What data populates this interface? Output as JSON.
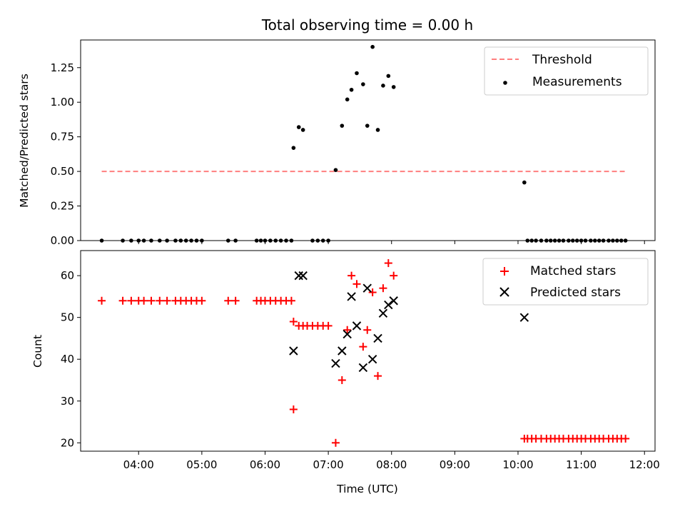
{
  "chart_data": [
    {
      "type": "scatter",
      "title": "Total observing time = 0.00 h",
      "xlabel": "",
      "ylabel": "Matched/Predicted stars",
      "ylim": [
        0,
        1.45
      ],
      "yticks": [
        "0.00",
        "0.25",
        "0.50",
        "0.75",
        "1.00",
        "1.25"
      ],
      "legend": {
        "placement": "top-right",
        "entries": [
          "Threshold",
          "Measurements"
        ]
      },
      "series": [
        {
          "name": "Threshold",
          "kind": "dashed-line",
          "color": "#ff7f7f",
          "x": [
            "03:25",
            "11:43"
          ],
          "y": [
            0.5,
            0.5
          ]
        },
        {
          "name": "Measurements",
          "kind": "dots",
          "color": "#000000",
          "x": [
            "03:25",
            "03:45",
            "03:53",
            "04:00",
            "04:05",
            "04:12",
            "04:20",
            "04:27",
            "04:35",
            "04:40",
            "04:45",
            "04:50",
            "04:55",
            "05:00",
            "05:25",
            "05:32",
            "05:52",
            "05:56",
            "06:00",
            "06:05",
            "06:10",
            "06:15",
            "06:20",
            "06:25",
            "06:45",
            "06:50",
            "06:55",
            "07:00",
            "06:27",
            "06:32",
            "06:36",
            "07:07",
            "07:13",
            "07:18",
            "07:22",
            "07:27",
            "07:33",
            "07:37",
            "07:42",
            "07:47",
            "07:52",
            "07:57",
            "08:02",
            "10:06",
            "10:09",
            "10:13",
            "10:17",
            "10:22",
            "10:27",
            "10:31",
            "10:35",
            "10:39",
            "10:43",
            "10:48",
            "10:52",
            "10:56",
            "11:00",
            "11:04",
            "11:09",
            "11:13",
            "11:17",
            "11:21",
            "11:26",
            "11:30",
            "11:34",
            "11:38",
            "11:42"
          ],
          "y": [
            0,
            0,
            0,
            0,
            0,
            0,
            0,
            0,
            0,
            0,
            0,
            0,
            0,
            0,
            0,
            0,
            0,
            0,
            0,
            0,
            0,
            0,
            0,
            0,
            0,
            0,
            0,
            0,
            0.67,
            0.82,
            0.8,
            0.51,
            0.83,
            1.02,
            1.09,
            1.21,
            1.13,
            0.83,
            1.4,
            0.8,
            1.12,
            1.19,
            1.11,
            0.42,
            0,
            0,
            0,
            0,
            0,
            0,
            0,
            0,
            0,
            0,
            0,
            0,
            0,
            0,
            0,
            0,
            0,
            0,
            0,
            0,
            0,
            0,
            0
          ]
        }
      ]
    },
    {
      "type": "scatter",
      "title": "",
      "xlabel": "Time (UTC)",
      "ylabel": "Count",
      "ylim": [
        18,
        66
      ],
      "yticks": [
        "20",
        "30",
        "40",
        "50",
        "60"
      ],
      "xticks": [
        "04:00",
        "05:00",
        "06:00",
        "07:00",
        "08:00",
        "09:00",
        "10:00",
        "11:00",
        "12:00"
      ],
      "xrange": [
        "03:05",
        "12:10"
      ],
      "legend": {
        "placement": "top-right",
        "entries": [
          "Matched stars",
          "Predicted stars"
        ]
      },
      "series": [
        {
          "name": "Matched stars",
          "marker": "+",
          "color": "#ff0000",
          "x": [
            "03:25",
            "03:45",
            "03:53",
            "04:00",
            "04:05",
            "04:12",
            "04:20",
            "04:27",
            "04:35",
            "04:40",
            "04:45",
            "04:50",
            "04:55",
            "05:00",
            "05:25",
            "05:32",
            "05:52",
            "05:56",
            "06:00",
            "06:05",
            "06:10",
            "06:15",
            "06:20",
            "06:25",
            "06:27",
            "06:32",
            "06:36",
            "06:40",
            "06:45",
            "06:50",
            "06:55",
            "07:00",
            "06:27",
            "07:07",
            "07:13",
            "07:18",
            "07:22",
            "07:27",
            "07:33",
            "07:37",
            "07:42",
            "07:47",
            "07:52",
            "07:57",
            "08:02",
            "10:06",
            "10:09",
            "10:13",
            "10:17",
            "10:22",
            "10:27",
            "10:31",
            "10:35",
            "10:39",
            "10:43",
            "10:48",
            "10:52",
            "10:56",
            "11:00",
            "11:04",
            "11:09",
            "11:13",
            "11:17",
            "11:21",
            "11:26",
            "11:30",
            "11:34",
            "11:38",
            "11:42"
          ],
          "y": [
            54,
            54,
            54,
            54,
            54,
            54,
            54,
            54,
            54,
            54,
            54,
            54,
            54,
            54,
            54,
            54,
            54,
            54,
            54,
            54,
            54,
            54,
            54,
            54,
            49,
            48,
            48,
            48,
            48,
            48,
            48,
            48,
            28,
            20,
            35,
            47,
            60,
            58,
            43,
            47,
            56,
            36,
            57,
            63,
            60,
            21,
            21,
            21,
            21,
            21,
            21,
            21,
            21,
            21,
            21,
            21,
            21,
            21,
            21,
            21,
            21,
            21,
            21,
            21,
            21,
            21,
            21,
            21,
            21
          ]
        },
        {
          "name": "Predicted stars",
          "marker": "x",
          "color": "#000000",
          "x": [
            "06:27",
            "06:32",
            "06:36",
            "07:07",
            "07:13",
            "07:18",
            "07:22",
            "07:27",
            "07:33",
            "07:37",
            "07:42",
            "07:47",
            "07:52",
            "07:57",
            "08:02",
            "10:06"
          ],
          "y": [
            42,
            60,
            60,
            39,
            42,
            46,
            55,
            48,
            38,
            57,
            40,
            45,
            51,
            53,
            54,
            50
          ]
        }
      ]
    }
  ]
}
